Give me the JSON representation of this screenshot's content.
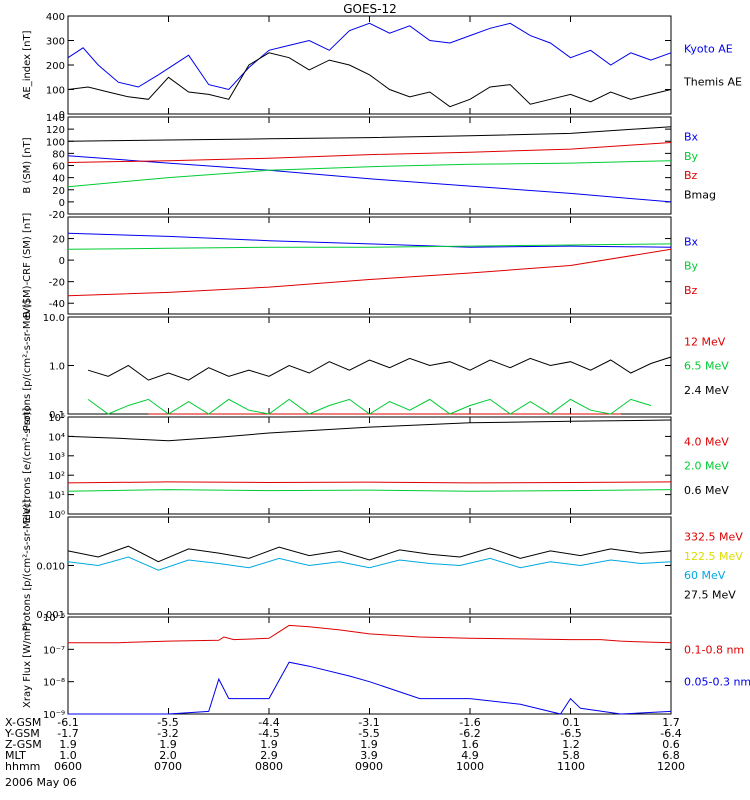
{
  "title": "GOES-12",
  "date_label": "2006 May 06",
  "colors": {
    "black": "#000000",
    "blue": "#0000ee",
    "red": "#dd0000",
    "green": "#00cc33",
    "yellow": "#dddd00",
    "cyan": "#00a8e0"
  },
  "x_axis": {
    "time_range": [
      "0600",
      "1200"
    ],
    "rows": [
      {
        "label": "X-GSM",
        "values": [
          "-6.1",
          "-5.5",
          "-4.4",
          "-3.1",
          "-1.6",
          "0.1",
          "1.7"
        ]
      },
      {
        "label": "Y-GSM",
        "values": [
          "-1.7",
          "-3.2",
          "-4.5",
          "-5.5",
          "-6.2",
          "-6.5",
          "-6.4"
        ]
      },
      {
        "label": "Z-GSM",
        "values": [
          "1.9",
          "1.9",
          "1.9",
          "1.9",
          "1.6",
          "1.2",
          "0.6"
        ]
      },
      {
        "label": "MLT",
        "values": [
          "1.0",
          "2.0",
          "2.9",
          "3.9",
          "4.9",
          "5.8",
          "6.8"
        ]
      },
      {
        "label": "hhmm",
        "values": [
          "0600",
          "0700",
          "0800",
          "0900",
          "1000",
          "1100",
          "1200"
        ]
      }
    ]
  },
  "chart_data": [
    {
      "type": "line",
      "ylabel": "AE_index [nT]",
      "yscale": "linear",
      "ylim": [
        0,
        400
      ],
      "yticks": [
        "0",
        "100",
        "200",
        "300",
        "400"
      ],
      "series": [
        {
          "name": "Kyoto AE",
          "color": "blue",
          "x": [
            0.0,
            0.15,
            0.3,
            0.5,
            0.7,
            0.9,
            1.2,
            1.4,
            1.6,
            1.8,
            2.0,
            2.2,
            2.4,
            2.6,
            2.8,
            3.0,
            3.2,
            3.4,
            3.6,
            3.8,
            4.0,
            4.2,
            4.4,
            4.6,
            4.8,
            5.0,
            5.2,
            5.4,
            5.6,
            5.8,
            6.0
          ],
          "y": [
            230,
            270,
            200,
            130,
            110,
            160,
            240,
            120,
            100,
            190,
            260,
            280,
            300,
            260,
            340,
            370,
            330,
            360,
            300,
            290,
            320,
            350,
            370,
            320,
            290,
            230,
            260,
            200,
            250,
            220,
            250
          ]
        },
        {
          "name": "Themis AE",
          "color": "black",
          "x": [
            0.0,
            0.2,
            0.4,
            0.6,
            0.8,
            1.0,
            1.2,
            1.4,
            1.6,
            1.8,
            2.0,
            2.2,
            2.4,
            2.6,
            2.8,
            3.0,
            3.2,
            3.4,
            3.6,
            3.8,
            4.0,
            4.2,
            4.4,
            4.6,
            4.8,
            5.0,
            5.2,
            5.4,
            5.6,
            5.8,
            6.0
          ],
          "y": [
            100,
            110,
            90,
            70,
            60,
            150,
            90,
            80,
            60,
            200,
            250,
            230,
            180,
            220,
            200,
            160,
            100,
            70,
            90,
            30,
            60,
            110,
            120,
            40,
            60,
            80,
            50,
            90,
            60,
            80,
            100
          ]
        }
      ]
    },
    {
      "type": "line",
      "ylabel": "B (SM) [nT]",
      "yscale": "linear",
      "ylim": [
        -20,
        140
      ],
      "yticks": [
        "-20",
        "0",
        "20",
        "40",
        "60",
        "80",
        "100",
        "120",
        "140"
      ],
      "series": [
        {
          "name": "Bx",
          "color": "blue",
          "x": [
            0,
            1,
            2,
            3,
            4,
            5,
            6
          ],
          "y": [
            76,
            64,
            52,
            38,
            26,
            14,
            0
          ]
        },
        {
          "name": "By",
          "color": "green",
          "x": [
            0,
            1,
            2,
            3,
            4,
            5,
            6
          ],
          "y": [
            25,
            40,
            52,
            58,
            62,
            64,
            68
          ]
        },
        {
          "name": "Bz",
          "color": "red",
          "x": [
            0,
            1,
            2,
            3,
            4,
            5,
            6
          ],
          "y": [
            65,
            68,
            72,
            78,
            82,
            87,
            98
          ]
        },
        {
          "name": "Bmag",
          "color": "black",
          "x": [
            0,
            1,
            2,
            3,
            4,
            5,
            6
          ],
          "y": [
            100,
            102,
            104,
            106,
            109,
            113,
            124
          ]
        }
      ]
    },
    {
      "type": "line",
      "ylabel": "B (SM)-CRF (SM) [nT]",
      "yscale": "linear",
      "ylim": [
        -50,
        40
      ],
      "yticks": [
        "-40",
        "-20",
        "0",
        "20"
      ],
      "series": [
        {
          "name": "Bx",
          "color": "blue",
          "x": [
            0,
            1,
            2,
            3,
            4,
            5,
            6
          ],
          "y": [
            25,
            22,
            18,
            15,
            12,
            13,
            12
          ]
        },
        {
          "name": "By",
          "color": "green",
          "x": [
            0,
            1,
            2,
            3,
            4,
            5,
            6
          ],
          "y": [
            10,
            11,
            12,
            12,
            13,
            14,
            15
          ]
        },
        {
          "name": "Bz",
          "color": "red",
          "x": [
            0,
            1,
            2,
            3,
            4,
            5,
            6
          ],
          "y": [
            -33,
            -30,
            -25,
            -18,
            -12,
            -5,
            10
          ]
        }
      ]
    },
    {
      "type": "line",
      "ylabel": "Protons [p/(cm²-s-sr-MeV)]",
      "yscale": "log",
      "ylim": [
        0.1,
        10
      ],
      "yticks": [
        "0.1",
        "1.0",
        "10.0"
      ],
      "series": [
        {
          "name": "12 MeV",
          "color": "red",
          "x": [
            0.8,
            2.3,
            4.7,
            5.5
          ],
          "y": [
            0.1,
            0.1,
            0.1,
            0.1
          ]
        },
        {
          "name": "6.5 MeV",
          "color": "green",
          "x": [
            0.2,
            0.4,
            0.6,
            0.8,
            1.0,
            1.2,
            1.4,
            1.6,
            1.8,
            2.0,
            2.2,
            2.4,
            2.6,
            2.8,
            3.0,
            3.2,
            3.4,
            3.6,
            3.8,
            4.0,
            4.2,
            4.4,
            4.6,
            4.8,
            5.0,
            5.2,
            5.4,
            5.6,
            5.8
          ],
          "y": [
            0.2,
            0.1,
            0.15,
            0.2,
            0.1,
            0.18,
            0.1,
            0.2,
            0.12,
            0.1,
            0.2,
            0.1,
            0.15,
            0.2,
            0.1,
            0.18,
            0.12,
            0.2,
            0.1,
            0.15,
            0.2,
            0.1,
            0.18,
            0.1,
            0.2,
            0.12,
            0.1,
            0.2,
            0.15
          ]
        },
        {
          "name": "2.4 MeV",
          "color": "black",
          "x": [
            0.2,
            0.4,
            0.6,
            0.8,
            1.0,
            1.2,
            1.4,
            1.6,
            1.8,
            2.0,
            2.2,
            2.4,
            2.6,
            2.8,
            3.0,
            3.2,
            3.4,
            3.6,
            3.8,
            4.0,
            4.2,
            4.4,
            4.6,
            4.8,
            5.0,
            5.2,
            5.4,
            5.6,
            5.8,
            6.0
          ],
          "y": [
            0.8,
            0.6,
            1.0,
            0.5,
            0.7,
            0.5,
            0.9,
            0.6,
            0.8,
            0.6,
            1.0,
            0.7,
            1.2,
            0.8,
            1.3,
            0.9,
            1.4,
            1.0,
            1.2,
            0.8,
            1.3,
            0.9,
            1.4,
            1.0,
            1.2,
            0.8,
            1.3,
            0.7,
            1.1,
            1.5
          ]
        }
      ]
    },
    {
      "type": "line",
      "ylabel": "Electrons [e/(cm²-s-sr)]",
      "yscale": "log",
      "ylim": [
        1,
        100000
      ],
      "yticks": [
        "10⁰",
        "10¹",
        "10²",
        "10³",
        "10⁴",
        "10⁵"
      ],
      "series": [
        {
          "name": "4.0 MeV",
          "color": "red",
          "x": [
            0,
            1,
            2,
            3,
            4,
            5,
            6
          ],
          "y": [
            40,
            45,
            42,
            44,
            40,
            42,
            45
          ]
        },
        {
          "name": "2.0 MeV",
          "color": "green",
          "x": [
            0,
            1,
            2,
            3,
            4,
            5,
            6
          ],
          "y": [
            15,
            18,
            16,
            17,
            15,
            16,
            18
          ]
        },
        {
          "name": "0.6 MeV",
          "color": "black",
          "x": [
            0,
            0.5,
            1.0,
            1.5,
            2.0,
            3.0,
            4.0,
            5.0,
            6.0
          ],
          "y": [
            10000,
            8000,
            6000,
            9000,
            15000,
            30000,
            50000,
            60000,
            70000
          ]
        }
      ]
    },
    {
      "type": "line",
      "ylabel": "Protons [p/(cm²-s-sr-MeV)]",
      "yscale": "log",
      "ylim": [
        0.001,
        0.1
      ],
      "yticks": [
        "0.001",
        "0.010"
      ],
      "series": [
        {
          "name": "332.5 MeV",
          "color": "red",
          "x": [],
          "y": []
        },
        {
          "name": "122.5 MeV",
          "color": "yellow",
          "x": [],
          "y": []
        },
        {
          "name": "60 MeV",
          "color": "cyan",
          "x": [
            0,
            0.3,
            0.6,
            0.9,
            1.2,
            1.5,
            1.8,
            2.1,
            2.4,
            2.7,
            3.0,
            3.3,
            3.6,
            3.9,
            4.2,
            4.5,
            4.8,
            5.1,
            5.4,
            5.7,
            6.0
          ],
          "y": [
            0.012,
            0.01,
            0.015,
            0.008,
            0.013,
            0.011,
            0.009,
            0.014,
            0.01,
            0.012,
            0.009,
            0.013,
            0.011,
            0.01,
            0.014,
            0.009,
            0.012,
            0.01,
            0.013,
            0.011,
            0.012
          ]
        },
        {
          "name": "27.5 MeV",
          "color": "black",
          "x": [
            0,
            0.3,
            0.6,
            0.9,
            1.2,
            1.5,
            1.8,
            2.1,
            2.4,
            2.7,
            3.0,
            3.3,
            3.6,
            3.9,
            4.2,
            4.5,
            4.8,
            5.1,
            5.4,
            5.7,
            6.0
          ],
          "y": [
            0.02,
            0.015,
            0.025,
            0.012,
            0.022,
            0.018,
            0.014,
            0.024,
            0.016,
            0.02,
            0.013,
            0.021,
            0.017,
            0.015,
            0.023,
            0.014,
            0.02,
            0.016,
            0.022,
            0.018,
            0.02
          ]
        }
      ]
    },
    {
      "type": "line",
      "ylabel": "Xray Flux [W/m²]",
      "yscale": "log",
      "ylim": [
        1e-09,
        1e-06
      ],
      "yticks": [
        "10⁻⁹",
        "10⁻⁸",
        "10⁻⁷",
        "10⁻⁶"
      ],
      "series": [
        {
          "name": "0.1-0.8 nm",
          "color": "red",
          "x": [
            0,
            0.5,
            1.0,
            1.5,
            1.55,
            1.65,
            2.0,
            2.2,
            2.4,
            2.7,
            3.0,
            3.5,
            4.0,
            4.5,
            5.0,
            5.3,
            5.5,
            5.7,
            6.0
          ],
          "y": [
            1.6e-07,
            1.6e-07,
            1.8e-07,
            1.9e-07,
            2.4e-07,
            2e-07,
            2.2e-07,
            5.5e-07,
            5e-07,
            4e-07,
            3e-07,
            2.4e-07,
            2.2e-07,
            2.1e-07,
            2e-07,
            2e-07,
            1.8e-07,
            1.7e-07,
            1.6e-07
          ]
        },
        {
          "name": "0.05-0.3 nm",
          "color": "blue",
          "x": [
            0,
            0.5,
            1.0,
            1.4,
            1.5,
            1.6,
            2.0,
            2.2,
            2.4,
            2.8,
            3.0,
            3.5,
            4.0,
            4.5,
            4.9,
            5.0,
            5.1,
            5.5,
            6.0
          ],
          "y": [
            1e-09,
            1e-09,
            1e-09,
            1.2e-09,
            1.2e-08,
            3e-09,
            3e-09,
            4e-08,
            3e-08,
            1.5e-08,
            1e-08,
            3e-09,
            3e-09,
            2e-09,
            1e-09,
            3e-09,
            1.5e-09,
            1e-09,
            1.2e-09
          ]
        }
      ]
    }
  ]
}
